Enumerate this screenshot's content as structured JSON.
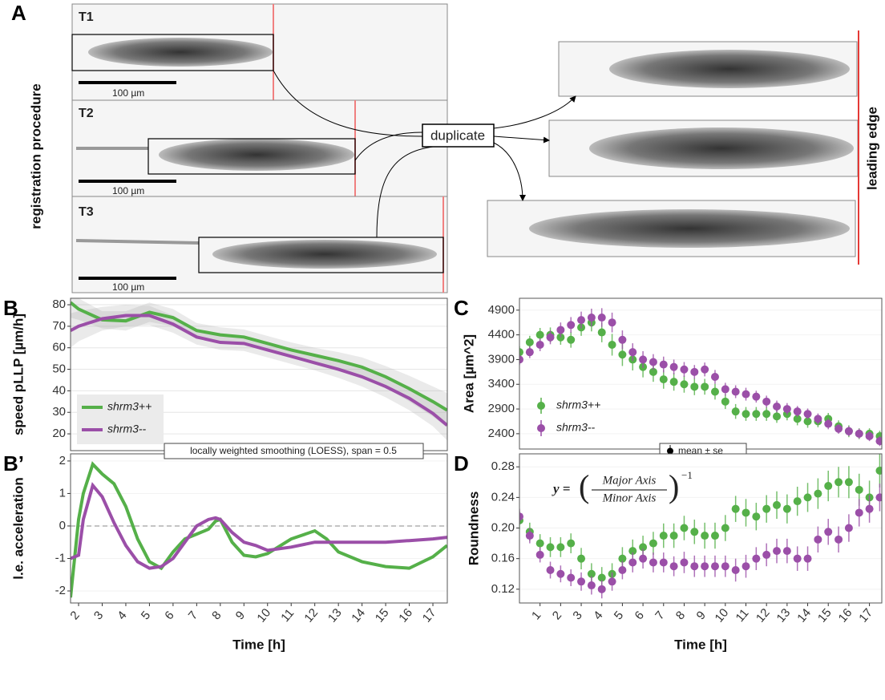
{
  "panel_a": {
    "label": "A",
    "frames": [
      "T1",
      "T2",
      "T3"
    ],
    "scale_bars": [
      "100 µm",
      "100 µm",
      "100 µm"
    ],
    "y_label": "registration procedure",
    "duplicate": "duplicate",
    "leading_edge": "leading edge"
  },
  "chart_data": [
    {
      "type": "line",
      "panel_label": "B",
      "ylabel": "speed pLLP [µm/h]",
      "x": [
        1.66,
        2,
        3,
        4,
        5,
        6,
        7,
        8,
        9,
        10,
        11,
        12,
        13,
        14,
        15,
        16,
        17,
        17.6
      ],
      "xlim": [
        1.66,
        17.61
      ],
      "ylim": [
        12.2,
        83
      ],
      "yticks": [
        20,
        30,
        40,
        50,
        60,
        70,
        80
      ],
      "grid": true,
      "legend": "bottom-left",
      "series": [
        {
          "name": "shrm3++",
          "color": "#55b049",
          "values": [
            81,
            78,
            73,
            72.5,
            76.5,
            74,
            68,
            66,
            65,
            62,
            59,
            56.5,
            54,
            51,
            46.5,
            41,
            35,
            31
          ],
          "band_low": [
            74,
            73,
            69,
            68,
            72,
            70,
            64.5,
            62.5,
            61.5,
            58.5,
            55.5,
            53,
            50,
            46.5,
            41.5,
            35,
            28,
            23
          ],
          "band_high": [
            88,
            83,
            77,
            77,
            81,
            78,
            71.5,
            69.5,
            68.5,
            65.5,
            62.5,
            60,
            58,
            55.5,
            51.5,
            47,
            42,
            39
          ]
        },
        {
          "name": "shrm3--",
          "color": "#9b4fa8",
          "values": [
            68,
            70,
            73.5,
            75,
            75,
            71,
            65,
            62.5,
            62,
            59,
            56,
            53,
            50,
            46.5,
            42,
            36.5,
            29.5,
            24
          ],
          "band_low": [
            60,
            63,
            68,
            70,
            70.5,
            67,
            61.5,
            59,
            58.5,
            55.5,
            52.5,
            49.5,
            46,
            42,
            37,
            31,
            23.5,
            17
          ],
          "band_high": [
            76,
            77,
            79,
            80,
            79.5,
            75,
            68.5,
            66,
            65.5,
            62.5,
            59.5,
            56.5,
            54,
            51,
            47,
            42,
            35.5,
            31
          ]
        }
      ]
    },
    {
      "type": "line",
      "panel_label": "B’",
      "strip": "locally weighted smoothing (LOESS), span = 0.5",
      "ylabel": "l.e. acceleration",
      "xlabel": "Time [h]",
      "x": [
        1.66,
        2,
        2.2,
        2.6,
        3,
        3.5,
        4,
        4.5,
        5,
        5.5,
        6,
        6.5,
        7,
        7.5,
        7.8,
        8,
        8.5,
        9,
        9.5,
        10,
        11,
        12,
        12.5,
        13,
        14,
        15,
        16,
        17,
        17.6
      ],
      "xlim": [
        1.66,
        17.61
      ],
      "xticks": [
        2,
        3,
        4,
        5,
        6,
        7,
        8,
        9,
        10,
        11,
        12,
        13,
        14,
        15,
        16,
        17
      ],
      "ylim": [
        -2.37,
        2.22
      ],
      "yticks": [
        -2,
        -1,
        0,
        1,
        2
      ],
      "hline": 0,
      "series": [
        {
          "name": "shrm3++",
          "color": "#55b049",
          "values": [
            -2.2,
            0.2,
            1.0,
            1.9,
            1.6,
            1.3,
            0.6,
            -0.4,
            -1.1,
            -1.3,
            -0.8,
            -0.4,
            -0.25,
            -0.1,
            0.15,
            0.2,
            -0.5,
            -0.9,
            -0.95,
            -0.85,
            -0.4,
            -0.15,
            -0.4,
            -0.8,
            -1.1,
            -1.25,
            -1.3,
            -0.95,
            -0.6
          ]
        },
        {
          "name": "shrm3--",
          "color": "#9b4fa8",
          "values": [
            -1.0,
            -0.9,
            0.2,
            1.25,
            0.9,
            0.1,
            -0.6,
            -1.1,
            -1.3,
            -1.25,
            -1.0,
            -0.5,
            0.0,
            0.2,
            0.25,
            0.2,
            -0.2,
            -0.5,
            -0.6,
            -0.75,
            -0.65,
            -0.5,
            -0.5,
            -0.5,
            -0.5,
            -0.5,
            -0.45,
            -0.4,
            -0.35
          ]
        }
      ]
    },
    {
      "type": "scatter",
      "panel_label": "C",
      "ylabel": "Area [µm^2]",
      "note": "mean ± se",
      "legend": "bottom-left",
      "x": [
        0,
        0.5,
        1,
        1.5,
        2,
        2.5,
        3,
        3.5,
        4,
        4.5,
        5,
        5.5,
        6,
        6.5,
        7,
        7.5,
        8,
        8.5,
        9,
        9.5,
        10,
        10.5,
        11,
        11.5,
        12,
        12.5,
        13,
        13.5,
        14,
        14.5,
        15,
        15.5,
        16,
        16.5,
        17,
        17.5
      ],
      "xlim": [
        0,
        17.6
      ],
      "ylim": [
        2090,
        5140
      ],
      "yticks": [
        2400,
        2900,
        3400,
        3900,
        4400,
        4900
      ],
      "series": [
        {
          "name": "shrm3++",
          "color": "#55b049",
          "values": [
            4050,
            4250,
            4400,
            4400,
            4350,
            4300,
            4550,
            4650,
            4450,
            4200,
            4000,
            3900,
            3750,
            3650,
            3500,
            3450,
            3400,
            3350,
            3350,
            3250,
            3050,
            2850,
            2800,
            2800,
            2800,
            2750,
            2800,
            2700,
            2650,
            2650,
            2700,
            2550,
            2450,
            2400,
            2400,
            2350
          ],
          "errors": [
            120,
            130,
            140,
            150,
            150,
            160,
            170,
            180,
            200,
            220,
            230,
            220,
            210,
            200,
            190,
            180,
            170,
            170,
            160,
            160,
            150,
            150,
            140,
            140,
            140,
            130,
            130,
            130,
            130,
            120,
            120,
            120,
            120,
            110,
            110,
            110
          ]
        },
        {
          "name": "shrm3--",
          "color": "#9b4fa8",
          "values": [
            3900,
            4050,
            4200,
            4350,
            4500,
            4600,
            4700,
            4750,
            4750,
            4650,
            4300,
            4050,
            3900,
            3850,
            3800,
            3750,
            3700,
            3650,
            3700,
            3550,
            3300,
            3250,
            3200,
            3150,
            3050,
            2950,
            2900,
            2850,
            2800,
            2700,
            2600,
            2500,
            2450,
            2400,
            2350,
            2250
          ],
          "errors": [
            110,
            120,
            130,
            140,
            150,
            160,
            170,
            180,
            190,
            200,
            190,
            180,
            170,
            160,
            160,
            150,
            150,
            140,
            140,
            140,
            130,
            130,
            130,
            120,
            120,
            120,
            120,
            110,
            110,
            110,
            110,
            100,
            100,
            100,
            100,
            100
          ]
        }
      ]
    },
    {
      "type": "scatter",
      "panel_label": "D",
      "ylabel": "Roundness",
      "xlabel": "Time [h]",
      "formula": {
        "lhs": "y =",
        "numerator": "Major Axis",
        "denominator": "Minor Axis",
        "exponent": "−1"
      },
      "x": [
        0,
        0.5,
        1,
        1.5,
        2,
        2.5,
        3,
        3.5,
        4,
        4.5,
        5,
        5.5,
        6,
        6.5,
        7,
        7.5,
        8,
        8.5,
        9,
        9.5,
        10,
        10.5,
        11,
        11.5,
        12,
        12.5,
        13,
        13.5,
        14,
        14.5,
        15,
        15.5,
        16,
        16.5,
        17,
        17.5
      ],
      "xlim": [
        0,
        17.6
      ],
      "xticks": [
        1,
        2,
        3,
        4,
        5,
        6,
        7,
        8,
        9,
        10,
        11,
        12,
        13,
        14,
        15,
        16,
        17
      ],
      "ylim": [
        0.102,
        0.297
      ],
      "yticks": [
        0.12,
        0.16,
        {
          "value": 0.2,
          "label": "0.20"
        },
        0.24,
        0.28
      ],
      "series": [
        {
          "name": "shrm3++",
          "color": "#55b049",
          "values": [
            0.21,
            0.195,
            0.18,
            0.175,
            0.175,
            0.18,
            0.16,
            0.14,
            0.135,
            0.14,
            0.16,
            0.17,
            0.175,
            0.18,
            0.19,
            0.19,
            0.2,
            0.195,
            0.19,
            0.19,
            0.2,
            0.225,
            0.22,
            0.215,
            0.225,
            0.23,
            0.225,
            0.235,
            0.24,
            0.245,
            0.255,
            0.26,
            0.26,
            0.25,
            0.24,
            0.275
          ],
          "errors": [
            0.012,
            0.012,
            0.012,
            0.013,
            0.013,
            0.013,
            0.014,
            0.014,
            0.014,
            0.014,
            0.015,
            0.015,
            0.015,
            0.015,
            0.016,
            0.016,
            0.016,
            0.016,
            0.017,
            0.017,
            0.017,
            0.017,
            0.018,
            0.018,
            0.018,
            0.018,
            0.019,
            0.019,
            0.019,
            0.02,
            0.02,
            0.02,
            0.021,
            0.021,
            0.022,
            0.022
          ]
        },
        {
          "name": "shrm3--",
          "color": "#9b4fa8",
          "values": [
            0.215,
            0.19,
            0.165,
            0.145,
            0.14,
            0.135,
            0.13,
            0.125,
            0.12,
            0.13,
            0.145,
            0.155,
            0.16,
            0.155,
            0.155,
            0.15,
            0.155,
            0.15,
            0.15,
            0.15,
            0.15,
            0.145,
            0.15,
            0.16,
            0.165,
            0.17,
            0.17,
            0.16,
            0.16,
            0.185,
            0.195,
            0.185,
            0.2,
            0.22,
            0.225,
            0.24
          ],
          "errors": [
            0.01,
            0.01,
            0.01,
            0.011,
            0.011,
            0.011,
            0.012,
            0.012,
            0.012,
            0.012,
            0.012,
            0.013,
            0.013,
            0.013,
            0.013,
            0.013,
            0.014,
            0.014,
            0.014,
            0.014,
            0.014,
            0.015,
            0.015,
            0.015,
            0.015,
            0.016,
            0.016,
            0.016,
            0.016,
            0.017,
            0.017,
            0.017,
            0.018,
            0.018,
            0.018,
            0.018
          ]
        }
      ]
    }
  ]
}
